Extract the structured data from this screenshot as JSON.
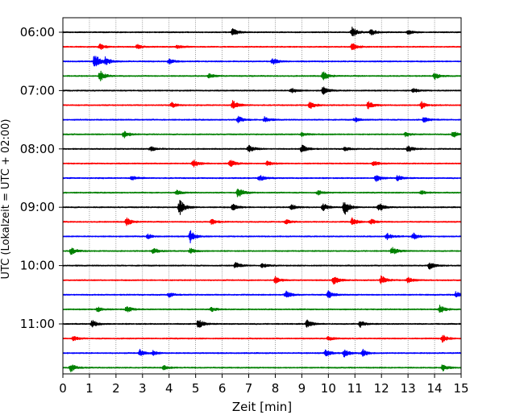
{
  "chart_data": {
    "type": "line",
    "chart_kind": "helicorder",
    "xlabel": "Zeit  [min]",
    "ylabel": "UTC (Lokalzeit = UTC + 02:00)",
    "xlim": [
      0,
      15
    ],
    "x_ticks": [
      0,
      1,
      2,
      3,
      4,
      5,
      6,
      7,
      8,
      9,
      10,
      11,
      12,
      13,
      14,
      15
    ],
    "x_tick_labels": [
      "0",
      "1",
      "2",
      "3",
      "4",
      "5",
      "6",
      "7",
      "8",
      "9",
      "10",
      "11",
      "12",
      "13",
      "14",
      "15"
    ],
    "y_ticks": [
      "06:00",
      "07:00",
      "08:00",
      "09:00",
      "10:00",
      "11:00"
    ],
    "start_time": "06:00",
    "line_interval_min": 15,
    "vertical_grid": "dotted, every 1 min",
    "colors": [
      "#000000",
      "#ff0000",
      "#0000ff",
      "#008000"
    ],
    "traces": [
      {
        "start": "06:00",
        "color": "#000000",
        "events": [
          {
            "t": 6.4,
            "amp": 0.35
          },
          {
            "t": 10.9,
            "amp": 0.45
          },
          {
            "t": 11.6,
            "amp": 0.3
          },
          {
            "t": 13.0,
            "amp": 0.2
          }
        ]
      },
      {
        "start": "06:15",
        "color": "#ff0000",
        "events": [
          {
            "t": 1.4,
            "amp": 0.25
          },
          {
            "t": 2.8,
            "amp": 0.2
          },
          {
            "t": 4.3,
            "amp": 0.2
          },
          {
            "t": 10.9,
            "amp": 0.35
          }
        ]
      },
      {
        "start": "06:30",
        "color": "#0000ff",
        "events": [
          {
            "t": 1.2,
            "amp": 0.75
          },
          {
            "t": 1.6,
            "amp": 0.35
          },
          {
            "t": 4.0,
            "amp": 0.25
          },
          {
            "t": 7.9,
            "amp": 0.3
          }
        ]
      },
      {
        "start": "06:45",
        "color": "#008000",
        "events": [
          {
            "t": 1.4,
            "amp": 0.5
          },
          {
            "t": 5.5,
            "amp": 0.2
          },
          {
            "t": 9.8,
            "amp": 0.4
          },
          {
            "t": 14.0,
            "amp": 0.3
          }
        ]
      },
      {
        "start": "07:00",
        "color": "#000000",
        "events": [
          {
            "t": 8.6,
            "amp": 0.25
          },
          {
            "t": 9.8,
            "amp": 0.35
          },
          {
            "t": 13.2,
            "amp": 0.2
          }
        ]
      },
      {
        "start": "07:15",
        "color": "#ff0000",
        "events": [
          {
            "t": 4.1,
            "amp": 0.25
          },
          {
            "t": 6.4,
            "amp": 0.45
          },
          {
            "t": 9.3,
            "amp": 0.35
          },
          {
            "t": 11.5,
            "amp": 0.35
          },
          {
            "t": 13.5,
            "amp": 0.3
          }
        ]
      },
      {
        "start": "07:30",
        "color": "#0000ff",
        "events": [
          {
            "t": 6.6,
            "amp": 0.3
          },
          {
            "t": 7.6,
            "amp": 0.25
          },
          {
            "t": 11.0,
            "amp": 0.2
          },
          {
            "t": 13.6,
            "amp": 0.25
          }
        ]
      },
      {
        "start": "07:45",
        "color": "#008000",
        "events": [
          {
            "t": 2.3,
            "amp": 0.35
          },
          {
            "t": 9.0,
            "amp": 0.2
          },
          {
            "t": 12.9,
            "amp": 0.2
          },
          {
            "t": 14.7,
            "amp": 0.3
          }
        ]
      },
      {
        "start": "08:00",
        "color": "#000000",
        "events": [
          {
            "t": 3.3,
            "amp": 0.2
          },
          {
            "t": 7.0,
            "amp": 0.35
          },
          {
            "t": 9.0,
            "amp": 0.4
          },
          {
            "t": 10.6,
            "amp": 0.2
          },
          {
            "t": 13.0,
            "amp": 0.3
          }
        ]
      },
      {
        "start": "08:15",
        "color": "#ff0000",
        "events": [
          {
            "t": 4.9,
            "amp": 0.4
          },
          {
            "t": 6.3,
            "amp": 0.35
          },
          {
            "t": 7.7,
            "amp": 0.2
          },
          {
            "t": 11.7,
            "amp": 0.25
          }
        ]
      },
      {
        "start": "08:30",
        "color": "#0000ff",
        "events": [
          {
            "t": 2.6,
            "amp": 0.2
          },
          {
            "t": 7.4,
            "amp": 0.3
          },
          {
            "t": 11.8,
            "amp": 0.3
          },
          {
            "t": 12.6,
            "amp": 0.25
          }
        ]
      },
      {
        "start": "08:45",
        "color": "#008000",
        "events": [
          {
            "t": 4.3,
            "amp": 0.2
          },
          {
            "t": 6.6,
            "amp": 0.5
          },
          {
            "t": 9.6,
            "amp": 0.2
          },
          {
            "t": 13.5,
            "amp": 0.2
          }
        ]
      },
      {
        "start": "09:00",
        "color": "#000000",
        "events": [
          {
            "t": 4.4,
            "amp": 0.7
          },
          {
            "t": 6.4,
            "amp": 0.3
          },
          {
            "t": 8.6,
            "amp": 0.3
          },
          {
            "t": 9.8,
            "amp": 0.35
          },
          {
            "t": 10.6,
            "amp": 0.75
          },
          {
            "t": 11.9,
            "amp": 0.4
          }
        ]
      },
      {
        "start": "09:15",
        "color": "#ff0000",
        "events": [
          {
            "t": 2.4,
            "amp": 0.35
          },
          {
            "t": 5.6,
            "amp": 0.25
          },
          {
            "t": 8.4,
            "amp": 0.2
          },
          {
            "t": 10.9,
            "amp": 0.35
          },
          {
            "t": 11.6,
            "amp": 0.25
          }
        ]
      },
      {
        "start": "09:30",
        "color": "#0000ff",
        "events": [
          {
            "t": 3.2,
            "amp": 0.2
          },
          {
            "t": 4.8,
            "amp": 0.55
          },
          {
            "t": 12.2,
            "amp": 0.3
          },
          {
            "t": 13.2,
            "amp": 0.3
          }
        ]
      },
      {
        "start": "09:45",
        "color": "#008000",
        "events": [
          {
            "t": 0.3,
            "amp": 0.35
          },
          {
            "t": 3.4,
            "amp": 0.3
          },
          {
            "t": 4.8,
            "amp": 0.25
          },
          {
            "t": 12.4,
            "amp": 0.35
          }
        ]
      },
      {
        "start": "10:00",
        "color": "#000000",
        "events": [
          {
            "t": 6.5,
            "amp": 0.3
          },
          {
            "t": 7.5,
            "amp": 0.2
          },
          {
            "t": 13.8,
            "amp": 0.35
          }
        ]
      },
      {
        "start": "10:15",
        "color": "#ff0000",
        "events": [
          {
            "t": 8.0,
            "amp": 0.3
          },
          {
            "t": 10.2,
            "amp": 0.4
          },
          {
            "t": 12.0,
            "amp": 0.45
          },
          {
            "t": 13.0,
            "amp": 0.25
          }
        ]
      },
      {
        "start": "10:30",
        "color": "#0000ff",
        "events": [
          {
            "t": 4.0,
            "amp": 0.2
          },
          {
            "t": 8.4,
            "amp": 0.35
          },
          {
            "t": 10.0,
            "amp": 0.35
          },
          {
            "t": 14.8,
            "amp": 0.3
          }
        ]
      },
      {
        "start": "10:45",
        "color": "#008000",
        "events": [
          {
            "t": 1.3,
            "amp": 0.25
          },
          {
            "t": 2.4,
            "amp": 0.3
          },
          {
            "t": 5.6,
            "amp": 0.2
          },
          {
            "t": 14.2,
            "amp": 0.35
          }
        ]
      },
      {
        "start": "11:00",
        "color": "#000000",
        "events": [
          {
            "t": 1.1,
            "amp": 0.35
          },
          {
            "t": 5.1,
            "amp": 0.45
          },
          {
            "t": 9.2,
            "amp": 0.35
          },
          {
            "t": 11.2,
            "amp": 0.3
          }
        ]
      },
      {
        "start": "11:15",
        "color": "#ff0000",
        "events": [
          {
            "t": 0.4,
            "amp": 0.2
          },
          {
            "t": 10.0,
            "amp": 0.2
          },
          {
            "t": 14.3,
            "amp": 0.35
          }
        ]
      },
      {
        "start": "11:30",
        "color": "#0000ff",
        "events": [
          {
            "t": 2.9,
            "amp": 0.3
          },
          {
            "t": 3.4,
            "amp": 0.2
          },
          {
            "t": 9.9,
            "amp": 0.3
          },
          {
            "t": 10.6,
            "amp": 0.35
          },
          {
            "t": 11.3,
            "amp": 0.3
          }
        ]
      },
      {
        "start": "11:45",
        "color": "#008000",
        "events": [
          {
            "t": 0.3,
            "amp": 0.35
          },
          {
            "t": 3.8,
            "amp": 0.2
          },
          {
            "t": 14.3,
            "amp": 0.3
          }
        ]
      }
    ]
  }
}
